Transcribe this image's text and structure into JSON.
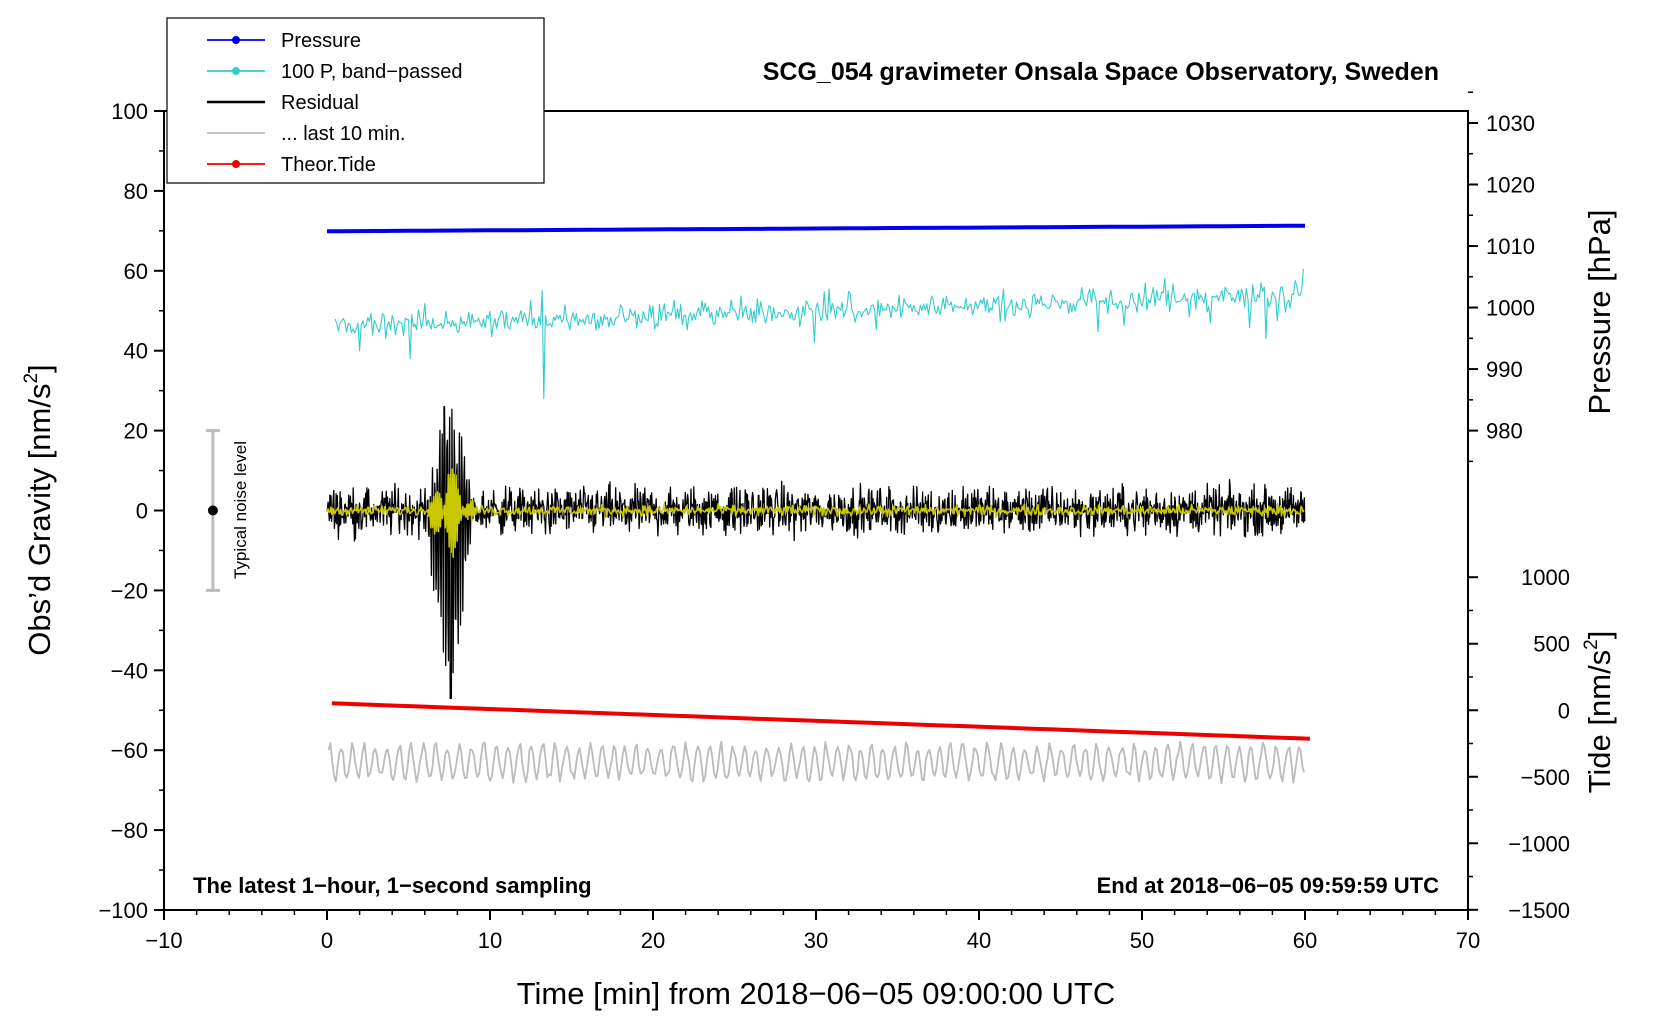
{
  "chart_data": {
    "type": "line",
    "title": "SCG_054 gravimeter Onsala Space Observatory, Sweden",
    "xlabel": "Time [min] from 2018−06−05 09:00:00 UTC",
    "xlim": [
      -10,
      70
    ],
    "xticks": [
      -10,
      0,
      10,
      20,
      30,
      40,
      50,
      60,
      70
    ],
    "xtick_labels": [
      "−10",
      "0",
      "10",
      "20",
      "30",
      "40",
      "50",
      "60",
      "70"
    ],
    "left_axis": {
      "label": "Obs’d Gravity [nm/s²]",
      "label_main": "Obs’d Gravity [nm/s",
      "label_sup": "2",
      "label_end": "]",
      "ylim": [
        -100,
        100
      ],
      "ticks": [
        -100,
        -80,
        -60,
        -40,
        -20,
        0,
        20,
        40,
        60,
        80,
        100
      ],
      "tick_labels": [
        "−100",
        "−80",
        "−60",
        "−40",
        "−20",
        "0",
        "20",
        "40",
        "60",
        "80",
        "100"
      ]
    },
    "pressure_axis": {
      "label": "Pressure [hPa]",
      "ticks": [
        980,
        990,
        1000,
        1010,
        1020,
        1030
      ],
      "tick_labels": [
        "980",
        "990",
        "1000",
        "1010",
        "1020",
        "1030"
      ],
      "gravity_at_980": 20,
      "gravity_per_hPa": 1.54
    },
    "tide_axis": {
      "label": "Tide [nm/s²]",
      "label_main": "Tide [nm/s",
      "label_sup": "2",
      "label_end": "]",
      "ticks": [
        -1500,
        -1000,
        -500,
        0,
        500,
        1000
      ],
      "tick_labels": [
        "−1500",
        "−1000",
        "−500",
        "0",
        "500",
        "1000"
      ],
      "gravity_at_0": -50,
      "gravity_per_unit": 0.0333
    },
    "legend": {
      "position": "top-left",
      "entries": [
        {
          "label": "Pressure",
          "color": "#0000ee",
          "marker": true
        },
        {
          "label": "100 P, band−passed",
          "color": "#33cccc",
          "marker": true
        },
        {
          "label": "Residual",
          "color": "#000000",
          "marker": false
        },
        {
          "label": "... last 10 min.",
          "color": "#bbbbbb",
          "marker": false
        },
        {
          "label": "Theor.Tide",
          "color": "#ee0000",
          "marker": true
        }
      ]
    },
    "notes": {
      "left": "The latest 1−hour, 1−second sampling",
      "right": "End at 2018−06−05 09:59:59 UTC"
    },
    "noise_bar": {
      "label": "Typical noise level",
      "x": -7,
      "center": 0,
      "half_range": 20
    },
    "series": [
      {
        "name": "Pressure",
        "color": "#0000ee",
        "unit": "hPa",
        "start": 1012.4,
        "end": 1013.3,
        "t_start": 0,
        "t_end": 60
      },
      {
        "name": "100 P, band−passed",
        "color": "#33cccc",
        "unit": "nm/s² (plotted)",
        "start": 46,
        "end": 54,
        "noise_amp": 2,
        "spikes": [
          {
            "t": 13.3,
            "value": 28
          },
          {
            "t": 13.2,
            "value": 55
          },
          {
            "t": 57.6,
            "value": 43
          }
        ]
      },
      {
        "name": "Residual",
        "color": "#000000",
        "unit": "nm/s²",
        "baseline": 0,
        "noise_amp": 4,
        "event": {
          "t_start": 5.5,
          "t_end": 12,
          "peak_t": 7.5,
          "max": 26,
          "min": -47
        }
      },
      {
        "name": "Residual smoothed",
        "color": "#c8c800",
        "unit": "nm/s²",
        "baseline": 0,
        "noise_amp": 0.9,
        "event_amp": 11
      },
      {
        "name": "Theor.Tide",
        "color": "#ee0000",
        "unit": "nm/s²",
        "start": 52,
        "end": -215,
        "t_start": 0.3,
        "t_end": 60.5
      },
      {
        "name": "... last 10 min.",
        "color": "#bbbbbb",
        "unit": "nm/s² (plotted)",
        "center": -63,
        "amp": 4.5
      }
    ]
  }
}
